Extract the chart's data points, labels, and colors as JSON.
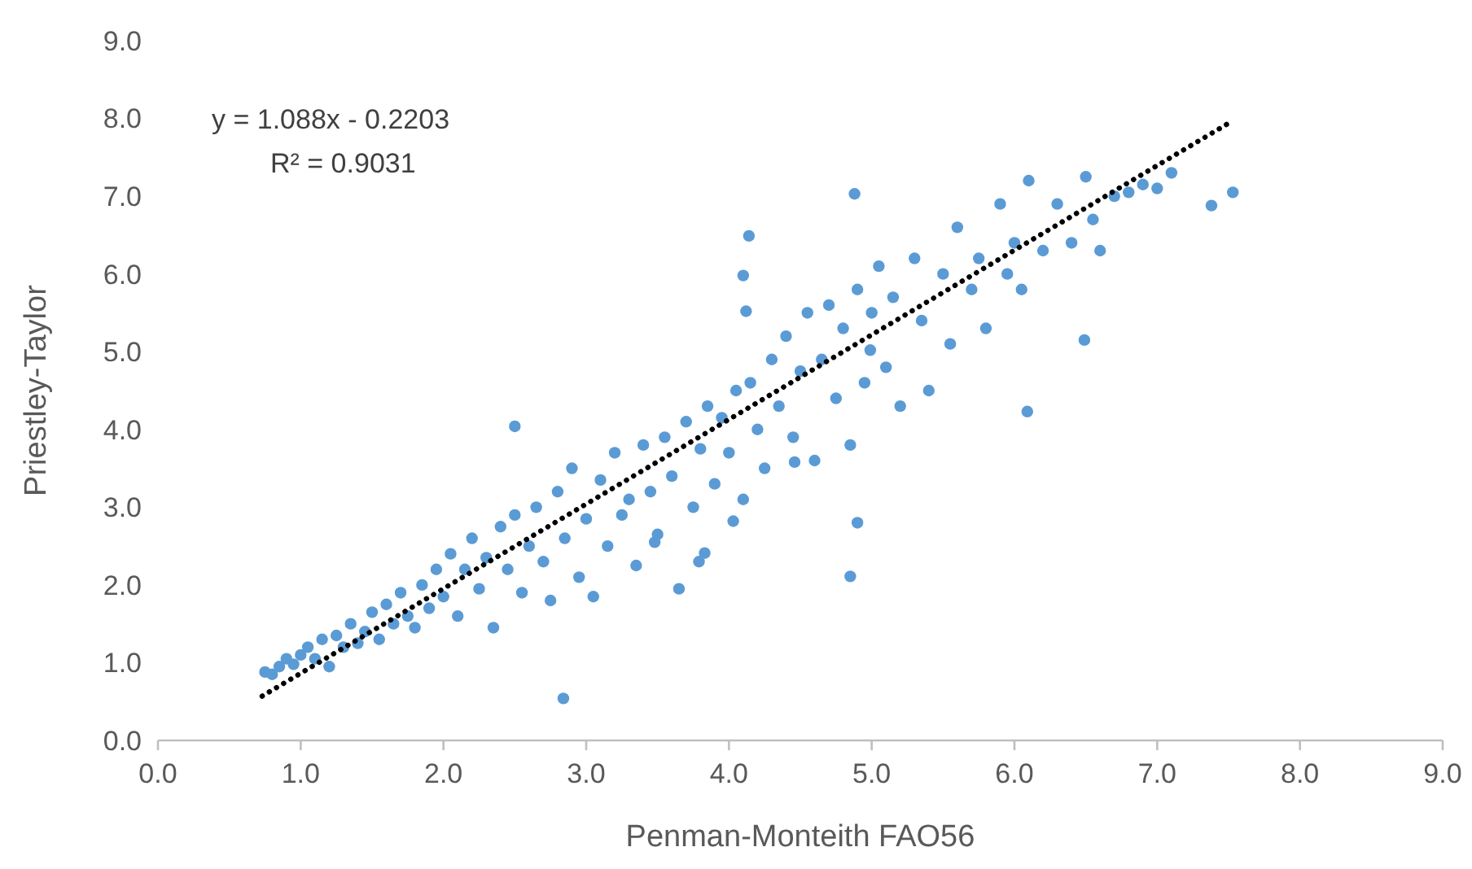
{
  "chart_data": {
    "type": "scatter",
    "xlabel": "Penman-Monteith FAO56",
    "ylabel": "Priestley-Taylor",
    "xlim": [
      0,
      9
    ],
    "ylim": [
      0,
      9
    ],
    "xticks": [
      {
        "value": 0,
        "label": "0.0"
      },
      {
        "value": 1,
        "label": "1.0"
      },
      {
        "value": 2,
        "label": "2.0"
      },
      {
        "value": 3,
        "label": "3.0"
      },
      {
        "value": 4,
        "label": "4.0"
      },
      {
        "value": 5,
        "label": "5.0"
      },
      {
        "value": 6,
        "label": "6.0"
      },
      {
        "value": 7,
        "label": "7.0"
      },
      {
        "value": 8,
        "label": "8.0"
      },
      {
        "value": 9,
        "label": "9.0"
      }
    ],
    "yticks": [
      {
        "value": 0,
        "label": "0.0"
      },
      {
        "value": 1,
        "label": "1.0"
      },
      {
        "value": 2,
        "label": "2.0"
      },
      {
        "value": 3,
        "label": "3.0"
      },
      {
        "value": 4,
        "label": "4.0"
      },
      {
        "value": 5,
        "label": "5.0"
      },
      {
        "value": 6,
        "label": "6.0"
      },
      {
        "value": 7,
        "label": "7.0"
      },
      {
        "value": 8,
        "label": "8.0"
      },
      {
        "value": 9,
        "label": "9.0"
      }
    ],
    "grid": false,
    "annotations": [
      "y = 1.088x - 0.2203",
      "R² = 0.9031"
    ],
    "series": [
      {
        "color": "#5b9bd5",
        "marker": "circle",
        "x": [
          0.75,
          0.8,
          0.85,
          0.9,
          0.95,
          1.0,
          1.05,
          1.1,
          1.15,
          1.2,
          1.25,
          1.3,
          1.35,
          1.4,
          1.45,
          1.5,
          1.55,
          1.6,
          1.65,
          1.7,
          1.75,
          1.8,
          1.85,
          1.9,
          1.95,
          2.0,
          2.05,
          2.1,
          2.15,
          2.2,
          2.25,
          2.3,
          2.35,
          2.4,
          2.45,
          2.5,
          2.55,
          2.6,
          2.65,
          2.7,
          2.75,
          2.8,
          2.85,
          2.9,
          2.95,
          3.0,
          3.05,
          3.1,
          3.15,
          3.2,
          3.25,
          3.3,
          3.35,
          3.4,
          3.45,
          3.5,
          3.55,
          3.6,
          3.65,
          3.7,
          3.75,
          3.8,
          3.85,
          3.9,
          3.95,
          4.0,
          4.05,
          4.1,
          4.15,
          4.2,
          4.25,
          4.3,
          4.35,
          4.4,
          4.45,
          4.5,
          4.55,
          4.6,
          4.65,
          4.7,
          4.75,
          4.8,
          4.85,
          4.9,
          4.95,
          5.0,
          5.05,
          5.1,
          5.15,
          5.2,
          5.3,
          5.35,
          5.4,
          5.5,
          5.55,
          5.6,
          5.7,
          5.75,
          5.8,
          5.9,
          5.95,
          6.0,
          6.05,
          6.1,
          6.2,
          6.3,
          6.4,
          6.5,
          6.55,
          6.6,
          6.7,
          6.8,
          6.9,
          7.0,
          7.1,
          2.84,
          2.5,
          4.85,
          4.9,
          6.09,
          6.49,
          7.38,
          7.53,
          4.14,
          4.88,
          3.48,
          3.79,
          3.83,
          4.03,
          4.1,
          4.12,
          4.46,
          4.99
        ],
        "values": [
          0.88,
          0.85,
          0.95,
          1.05,
          0.98,
          1.1,
          1.2,
          1.05,
          1.3,
          0.95,
          1.35,
          1.2,
          1.5,
          1.25,
          1.4,
          1.65,
          1.3,
          1.75,
          1.5,
          1.9,
          1.6,
          1.45,
          2.0,
          1.7,
          2.2,
          1.85,
          2.4,
          1.6,
          2.2,
          2.6,
          1.95,
          2.35,
          1.45,
          2.75,
          2.2,
          2.9,
          1.9,
          2.5,
          3.0,
          2.3,
          1.8,
          3.2,
          2.6,
          3.5,
          2.1,
          2.85,
          1.85,
          3.35,
          2.5,
          3.7,
          2.9,
          3.1,
          2.25,
          3.8,
          3.2,
          2.65,
          3.9,
          3.4,
          1.95,
          4.1,
          3.0,
          3.75,
          4.3,
          3.3,
          4.15,
          3.7,
          4.5,
          3.1,
          4.6,
          4.0,
          3.5,
          4.9,
          4.3,
          5.2,
          3.9,
          4.75,
          5.5,
          3.6,
          4.9,
          5.6,
          4.4,
          5.3,
          3.8,
          5.8,
          4.6,
          5.5,
          6.1,
          4.8,
          5.7,
          4.3,
          6.2,
          5.4,
          4.5,
          6.0,
          5.1,
          6.6,
          5.8,
          6.2,
          5.3,
          6.9,
          6.0,
          6.4,
          5.8,
          7.2,
          6.3,
          6.9,
          6.4,
          7.25,
          6.7,
          6.3,
          7.0,
          7.05,
          7.15,
          7.1,
          7.3,
          0.54,
          4.04,
          2.11,
          2.8,
          4.23,
          5.15,
          6.88,
          7.05,
          6.49,
          7.03,
          2.55,
          2.3,
          2.41,
          2.82,
          5.98,
          5.52,
          3.58,
          5.02
        ]
      },
      {
        "type": "line",
        "color": "#000000",
        "marker": "none",
        "line_style": "dotted",
        "x": [
          0.73,
          7.52
        ],
        "values": [
          0.57,
          7.96
        ]
      }
    ]
  }
}
